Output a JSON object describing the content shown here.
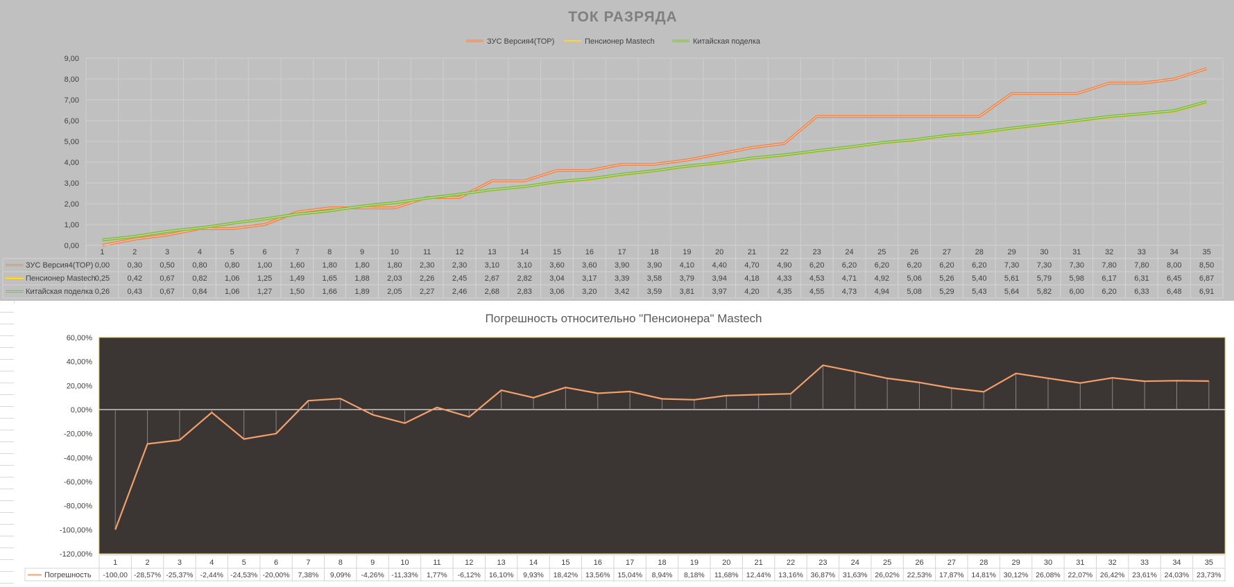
{
  "chart_data": [
    {
      "type": "line",
      "title": "ТОК РАЗРЯДА",
      "categories": [
        "1",
        "2",
        "3",
        "4",
        "5",
        "6",
        "7",
        "8",
        "9",
        "10",
        "11",
        "12",
        "13",
        "14",
        "15",
        "16",
        "17",
        "18",
        "19",
        "20",
        "21",
        "22",
        "23",
        "24",
        "25",
        "26",
        "27",
        "28",
        "29",
        "30",
        "31",
        "32",
        "33",
        "34",
        "35"
      ],
      "y_tick_labels": [
        "9,00",
        "8,00",
        "7,00",
        "6,00",
        "5,00",
        "4,00",
        "3,00",
        "2,00",
        "1,00",
        "0,00"
      ],
      "ylim": [
        0,
        9
      ],
      "grid": true,
      "legend_position": "top",
      "data_table": true,
      "series": [
        {
          "name": "ЗУС Версия4(ТОР)",
          "color": "#e8844c",
          "values": [
            0.0,
            0.3,
            0.5,
            0.8,
            0.8,
            1.0,
            1.6,
            1.8,
            1.8,
            1.8,
            2.3,
            2.3,
            3.1,
            3.1,
            3.6,
            3.6,
            3.9,
            3.9,
            4.1,
            4.4,
            4.7,
            4.9,
            6.2,
            6.2,
            6.2,
            6.2,
            6.2,
            6.2,
            7.3,
            7.3,
            7.3,
            7.8,
            7.8,
            8.0,
            8.5
          ],
          "labels": [
            "0,00",
            "0,30",
            "0,50",
            "0,80",
            "0,80",
            "1,00",
            "1,60",
            "1,80",
            "1,80",
            "1,80",
            "2,30",
            "2,30",
            "3,10",
            "3,10",
            "3,60",
            "3,60",
            "3,90",
            "3,90",
            "4,10",
            "4,40",
            "4,70",
            "4,90",
            "6,20",
            "6,20",
            "6,20",
            "6,20",
            "6,20",
            "6,20",
            "7,30",
            "7,30",
            "7,30",
            "7,80",
            "7,80",
            "8,00",
            "8,50"
          ]
        },
        {
          "name": "Пенсионер Mastech",
          "color": "#e8c43c",
          "values": [
            0.25,
            0.42,
            0.67,
            0.82,
            1.06,
            1.25,
            1.49,
            1.65,
            1.88,
            2.03,
            2.26,
            2.45,
            2.67,
            2.82,
            3.04,
            3.17,
            3.39,
            3.58,
            3.79,
            3.94,
            4.18,
            4.33,
            4.53,
            4.71,
            4.92,
            5.06,
            5.26,
            5.4,
            5.61,
            5.79,
            5.98,
            6.17,
            6.31,
            6.45,
            6.87
          ],
          "labels": [
            "0,25",
            "0,42",
            "0,67",
            "0,82",
            "1,06",
            "1,25",
            "1,49",
            "1,65",
            "1,88",
            "2,03",
            "2,26",
            "2,45",
            "2,67",
            "2,82",
            "3,04",
            "3,17",
            "3,39",
            "3,58",
            "3,79",
            "3,94",
            "4,18",
            "4,33",
            "4,53",
            "4,71",
            "4,92",
            "5,06",
            "5,26",
            "5,40",
            "5,61",
            "5,79",
            "5,98",
            "6,17",
            "6,31",
            "6,45",
            "6,87"
          ]
        },
        {
          "name": "Китайская поделка",
          "color": "#7cb83c",
          "values": [
            0.26,
            0.43,
            0.67,
            0.84,
            1.06,
            1.27,
            1.5,
            1.66,
            1.89,
            2.05,
            2.27,
            2.46,
            2.68,
            2.83,
            3.06,
            3.2,
            3.42,
            3.59,
            3.81,
            3.97,
            4.2,
            4.35,
            4.55,
            4.73,
            4.94,
            5.08,
            5.29,
            5.43,
            5.64,
            5.82,
            6.0,
            6.2,
            6.33,
            6.48,
            6.91
          ],
          "labels": [
            "0,26",
            "0,43",
            "0,67",
            "0,84",
            "1,06",
            "1,27",
            "1,50",
            "1,66",
            "1,89",
            "2,05",
            "2,27",
            "2,46",
            "2,68",
            "2,83",
            "3,06",
            "3,20",
            "3,42",
            "3,59",
            "3,81",
            "3,97",
            "4,20",
            "4,35",
            "4,55",
            "4,73",
            "4,94",
            "5,08",
            "5,29",
            "5,43",
            "5,64",
            "5,82",
            "6,00",
            "6,20",
            "6,33",
            "6,48",
            "6,91"
          ]
        }
      ]
    },
    {
      "type": "line",
      "title": "Погрешность относительно \"Пенсионера\" Mastech",
      "categories": [
        "1",
        "2",
        "3",
        "4",
        "5",
        "6",
        "7",
        "8",
        "9",
        "10",
        "11",
        "12",
        "13",
        "14",
        "15",
        "16",
        "17",
        "18",
        "19",
        "20",
        "21",
        "22",
        "23",
        "24",
        "25",
        "26",
        "27",
        "28",
        "29",
        "30",
        "31",
        "32",
        "33",
        "34",
        "35"
      ],
      "y_tick_labels": [
        "60,00%",
        "40,00%",
        "20,00%",
        "0,00%",
        "-20,00%",
        "-40,00%",
        "-60,00%",
        "-80,00%",
        "-100,00%",
        "-120,00%"
      ],
      "ylim": [
        -120,
        60
      ],
      "drop_lines": true,
      "plot_background": "#3b3634",
      "data_table": true,
      "series": [
        {
          "name": "Погрешность",
          "color": "#f4a06a",
          "values": [
            -100.0,
            -28.57,
            -25.37,
            -2.44,
            -24.53,
            -20.0,
            7.38,
            9.09,
            -4.26,
            -11.33,
            1.77,
            -6.12,
            16.1,
            9.93,
            18.42,
            13.56,
            15.04,
            8.94,
            8.18,
            11.68,
            12.44,
            13.16,
            36.87,
            31.63,
            26.02,
            22.53,
            17.87,
            14.81,
            30.12,
            26.08,
            22.07,
            26.42,
            23.61,
            24.03,
            23.73
          ],
          "labels": [
            "-100,00",
            "-28,57%",
            "-25,37%",
            "-2,44%",
            "-24,53%",
            "-20,00%",
            "7,38%",
            "9,09%",
            "-4,26%",
            "-11,33%",
            "1,77%",
            "-6,12%",
            "16,10%",
            "9,93%",
            "18,42%",
            "13,56%",
            "15,04%",
            "8,94%",
            "8,18%",
            "11,68%",
            "12,44%",
            "13,16%",
            "36,87%",
            "31,63%",
            "26,02%",
            "22,53%",
            "17,87%",
            "14,81%",
            "30,12%",
            "26,08%",
            "22,07%",
            "26,42%",
            "23,61%",
            "24,03%",
            "23,73%"
          ]
        }
      ]
    }
  ]
}
